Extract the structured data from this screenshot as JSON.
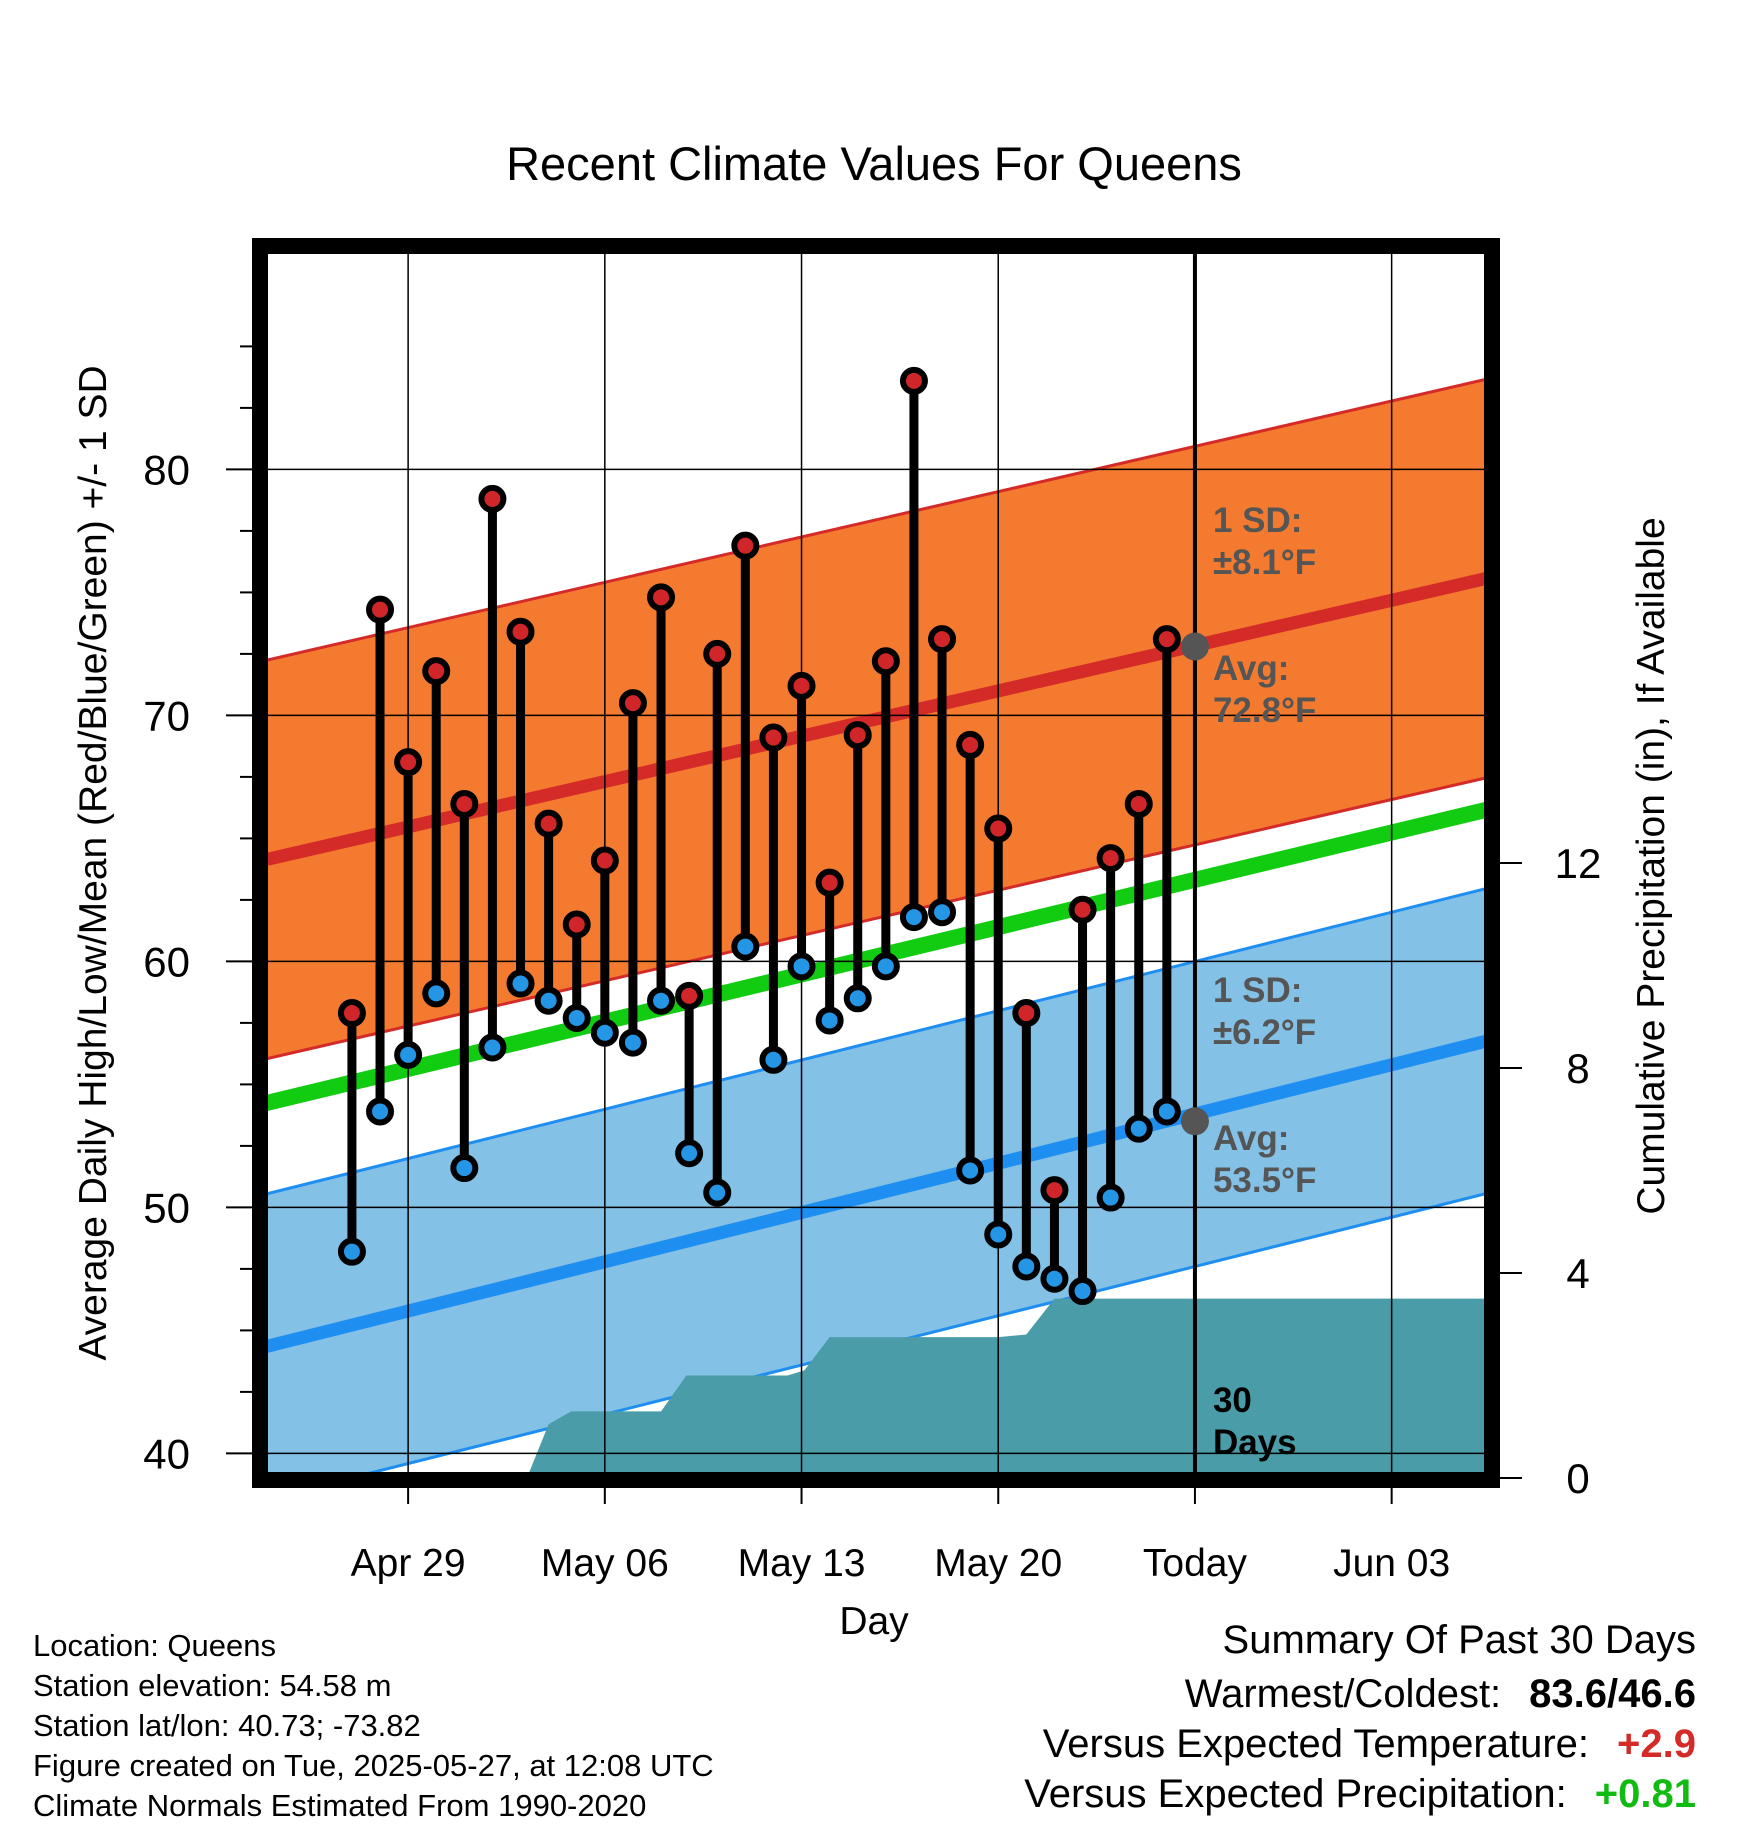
{
  "chart_data": {
    "type": "line",
    "title": "Recent Climate Values For Queens",
    "xlabel": "Day",
    "ylabel": "Average Daily High/Low/Mean (Red/Blue/Green) +/- 1 SD",
    "y2label": "Cumulative Precipitation (in), If Available",
    "ylim": [
      39,
      89
    ],
    "y2lim": [
      0,
      24
    ],
    "yticks": [
      "40",
      "50",
      "60",
      "70",
      "80"
    ],
    "y2ticks": [
      "0",
      "4",
      "8",
      "12"
    ],
    "x_range_days": [
      -33.2,
      10.5
    ],
    "xticks": [
      {
        "day": -28,
        "label": "Apr 29"
      },
      {
        "day": -21,
        "label": "May 06"
      },
      {
        "day": -14,
        "label": "May 13"
      },
      {
        "day": -7,
        "label": "May 20"
      },
      {
        "day": 0,
        "label": "Today"
      },
      {
        "day": 7,
        "label": "Jun 03"
      }
    ],
    "days": [
      -30,
      -29,
      -28,
      -27,
      -26,
      -25,
      -24,
      -23,
      -22,
      -21,
      -20,
      -19,
      -18,
      -17,
      -16,
      -15,
      -14,
      -13,
      -12,
      -11,
      -10,
      -9,
      -8,
      -7,
      -6,
      -5,
      -4,
      -3,
      -2,
      -1
    ],
    "highs": [
      57.9,
      74.3,
      68.1,
      71.8,
      66.4,
      78.8,
      73.4,
      65.6,
      61.5,
      64.1,
      70.5,
      74.8,
      58.6,
      72.5,
      76.9,
      69.1,
      71.2,
      63.2,
      69.2,
      72.2,
      83.6,
      73.1,
      68.8,
      65.4,
      57.9,
      50.7,
      62.1,
      64.2,
      66.4,
      73.1
    ],
    "lows": [
      48.2,
      53.9,
      56.2,
      58.7,
      51.6,
      56.5,
      59.1,
      58.4,
      57.7,
      57.1,
      56.7,
      58.4,
      52.2,
      50.6,
      60.6,
      56.0,
      59.8,
      57.6,
      58.5,
      59.8,
      61.8,
      62.0,
      51.5,
      48.9,
      47.6,
      47.1,
      46.6,
      50.4,
      53.2,
      53.9
    ],
    "normals": {
      "high_avg": {
        "start": 64.1,
        "end": 75.6,
        "today": 72.8
      },
      "low_avg": {
        "start": 44.3,
        "end": 56.8,
        "today": 53.5
      },
      "mean": {
        "start": 54.2,
        "end": 66.2
      },
      "high_sd": 8.1,
      "low_sd": 6.2
    },
    "precip_cumulative": [
      {
        "day": -33.2,
        "value": 0.0
      },
      {
        "day": -24.0,
        "value": 0.0
      },
      {
        "day": -23.7,
        "value": 0.1
      },
      {
        "day": -23.0,
        "value": 1.05
      },
      {
        "day": -22.2,
        "value": 1.3
      },
      {
        "day": -20.9,
        "value": 1.3
      },
      {
        "day": -19.0,
        "value": 1.3
      },
      {
        "day": -18.1,
        "value": 2.0
      },
      {
        "day": -16.0,
        "value": 2.0
      },
      {
        "day": -14.5,
        "value": 2.0
      },
      {
        "day": -13.9,
        "value": 2.1
      },
      {
        "day": -13.0,
        "value": 2.75
      },
      {
        "day": -11.0,
        "value": 2.75
      },
      {
        "day": -10.0,
        "value": 2.75
      },
      {
        "day": -7.0,
        "value": 2.75
      },
      {
        "day": -6.0,
        "value": 2.8
      },
      {
        "day": -5.0,
        "value": 3.5
      },
      {
        "day": -3.0,
        "value": 3.5
      },
      {
        "day": 0.0,
        "value": 3.5
      },
      {
        "day": 10.5,
        "value": 3.5
      }
    ],
    "annotations": {
      "high_sd_label": [
        "1 SD:",
        "±8.1°F"
      ],
      "high_avg_label": [
        "Avg:",
        "72.8°F"
      ],
      "low_sd_label": [
        "1 SD:",
        "±6.2°F"
      ],
      "low_avg_label": [
        "Avg:",
        "53.5°F"
      ],
      "window_label": [
        "30",
        "Days"
      ]
    },
    "grid": true,
    "colors": {
      "high_band": "#F47A30",
      "high_avg": "#D42A28",
      "high_edge": "#D42A28",
      "low_band": "#84C1E6",
      "low_avg": "#1E8EF0",
      "low_edge": "#1E8EF0",
      "mean": "#11CC11",
      "precip": "#4A9DA8",
      "high_dot": "#D0262A",
      "low_dot": "#2596E6",
      "avg_marker": "#555555",
      "annotation": "#555555"
    }
  },
  "footer": {
    "location": "Location: Queens",
    "elevation": "Station elevation: 54.58 m",
    "latlon": "Station lat/lon: 40.73; -73.82",
    "created": "Figure created on Tue, 2025-05-27, at 12:08 UTC",
    "normals": "Climate Normals Estimated From 1990-2020"
  },
  "summary": {
    "title": "Summary Of Past 30 Days",
    "warm_cold_label": "Warmest/Coldest:",
    "warm_cold_value": "83.6/46.6",
    "temp_label": "Versus Expected Temperature:",
    "temp_value": "+2.9",
    "temp_color": "#D42A28",
    "precip_label": "Versus Expected Precipitation:",
    "precip_value": "+0.81",
    "precip_color": "#11BB11"
  }
}
